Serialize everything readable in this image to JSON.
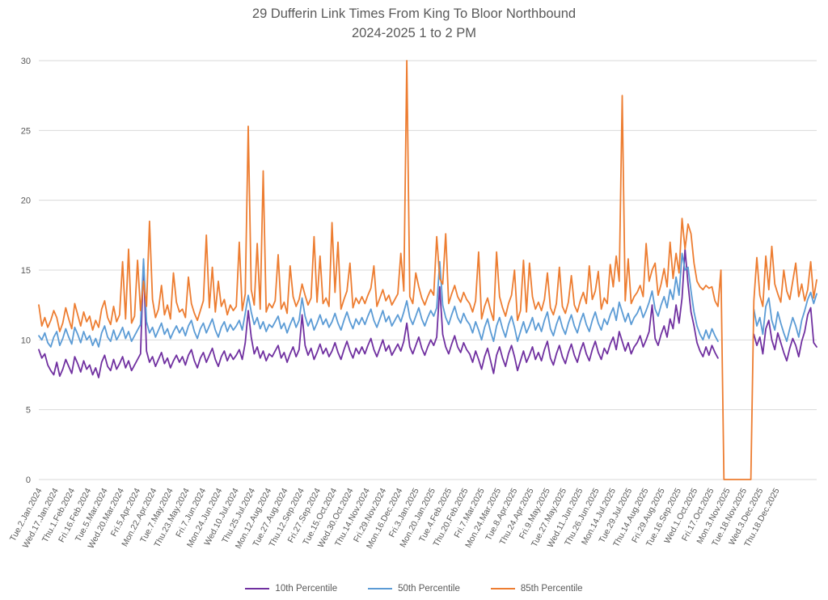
{
  "title": {
    "line1": "29 Dufferin Link Times From King To Bloor Northbound",
    "line2": "2024-2025 1 to 2 PM"
  },
  "colors": {
    "text": "#595959",
    "grid": "#d9d9d9",
    "background": "#ffffff"
  },
  "chart_data": {
    "type": "line",
    "title": "29 Dufferin Link Times From King To Bloor Northbound 2024-2025 1 to 2 PM",
    "xlabel": "",
    "ylabel": "",
    "ylim": [
      0,
      30
    ],
    "yticks": [
      0,
      5,
      10,
      15,
      20,
      25,
      30
    ],
    "grid": "horizontal",
    "legend_position": "bottom",
    "x_tick_labels": [
      "Tue.2.Jan.2024",
      "Wed.17.Jan.2024",
      "Thu.1.Feb.2024",
      "Fri.16.Feb.2024",
      "Tue.5.Mar.2024",
      "Wed.20.Mar.2024",
      "Fri.5.Apr.2024",
      "Mon.22.Apr.2024",
      "Tue.7.May.2024",
      "Thu.23.May.2024",
      "Fri.7.Jun.2024",
      "Mon.24.Jun.2024",
      "Wed.10.Jul.2024",
      "Thu.25.Jul.2024",
      "Mon.12.Aug.2024",
      "Tue.27.Aug.2024",
      "Thu.12.Sep.2024",
      "Fri.27.Sep.2024",
      "Tue.15.Oct.2024",
      "Wed.30.Oct.2024",
      "Thu.14.Nov.2024",
      "Fri.29.Nov.2024",
      "Mon.16.Dec.2024",
      "Fri.3.Jan.2025",
      "Mon.20.Jan.2025",
      "Tue.4.Feb.2025",
      "Thu.20.Feb.2025",
      "Fri.7.Mar.2025",
      "Mon.24.Mar.2025",
      "Tue.8.Apr.2025",
      "Thu.24.Apr.2025",
      "Fri.9.May.2025",
      "Tue.27.May.2025",
      "Wed.11.Jun.2025",
      "Thu.26.Jun.2025",
      "Mon.14.Jul.2025",
      "Tue.29.Jul.2025",
      "Thu.14.Aug.2025",
      "Fri.29.Aug.2025",
      "Tue.16.Sep.2025",
      "Wed.1.Oct.2025",
      "Fri.17.Oct.2025",
      "Mon.3.Nov.2025",
      "Tue.18.Nov.2025",
      "Wed.3.Dec.2025",
      "Thu.18.Dec.2025"
    ],
    "series": [
      {
        "name": "10th Percentile",
        "color": "#7030a0",
        "values": [
          9.3,
          8.7,
          9.0,
          8.2,
          7.8,
          7.5,
          8.4,
          7.4,
          7.9,
          8.6,
          8.1,
          7.6,
          8.8,
          8.3,
          7.7,
          8.5,
          7.9,
          8.2,
          7.5,
          8.0,
          7.3,
          8.4,
          8.9,
          8.1,
          7.8,
          8.6,
          7.9,
          8.3,
          8.8,
          8.0,
          8.5,
          7.8,
          8.2,
          8.6,
          9.0,
          15.5,
          9.2,
          8.4,
          8.8,
          8.1,
          8.6,
          9.1,
          8.3,
          8.7,
          8.0,
          8.5,
          8.9,
          8.4,
          8.8,
          8.2,
          8.9,
          9.3,
          8.5,
          8.0,
          8.7,
          9.1,
          8.4,
          8.9,
          9.4,
          8.6,
          8.1,
          8.8,
          9.2,
          8.5,
          9.0,
          8.6,
          8.9,
          9.3,
          8.6,
          9.8,
          12.1,
          10.2,
          9.0,
          9.5,
          8.7,
          9.2,
          8.5,
          9.0,
          8.8,
          9.2,
          9.6,
          8.7,
          9.1,
          8.4,
          9.0,
          9.5,
          8.8,
          9.3,
          11.8,
          9.6,
          8.9,
          9.4,
          8.6,
          9.1,
          9.7,
          9.0,
          9.4,
          8.8,
          9.2,
          9.8,
          9.1,
          8.6,
          9.3,
          9.9,
          9.2,
          8.7,
          9.4,
          9.0,
          9.5,
          9.0,
          9.6,
          10.1,
          9.3,
          8.8,
          9.4,
          10.0,
          9.2,
          9.6,
          8.9,
          9.3,
          9.7,
          9.2,
          9.9,
          11.2,
          9.5,
          9.0,
          9.6,
          10.2,
          9.4,
          8.9,
          9.5,
          10.0,
          9.6,
          10.2,
          13.8,
          10.4,
          9.5,
          9.0,
          9.7,
          10.3,
          9.5,
          9.1,
          9.8,
          9.3,
          9.0,
          8.4,
          9.2,
          8.6,
          7.9,
          8.8,
          9.4,
          8.5,
          7.6,
          8.9,
          9.5,
          8.7,
          8.1,
          9.0,
          9.6,
          8.8,
          7.8,
          8.5,
          9.2,
          8.4,
          8.9,
          9.5,
          8.6,
          9.1,
          8.5,
          9.3,
          9.9,
          8.7,
          8.2,
          9.0,
          9.6,
          8.8,
          8.3,
          9.1,
          9.7,
          8.9,
          8.4,
          9.2,
          9.8,
          9.0,
          8.5,
          9.3,
          9.9,
          9.1,
          8.6,
          9.4,
          9.0,
          9.7,
          10.2,
          9.3,
          10.6,
          9.9,
          9.2,
          9.8,
          9.0,
          9.5,
          9.8,
          10.3,
          9.5,
          10.0,
          10.6,
          12.5,
          10.1,
          9.6,
          10.4,
          11.0,
          10.2,
          11.5,
          10.8,
          12.5,
          11.2,
          13.0,
          16.5,
          14.0,
          12.0,
          11.0,
          9.8,
          9.2,
          8.8,
          9.5,
          8.9,
          9.6,
          9.1,
          8.7,
          null,
          null,
          null,
          null,
          null,
          null,
          null,
          null,
          null,
          null,
          null,
          10.4,
          9.6,
          10.2,
          9.0,
          10.8,
          11.4,
          10.0,
          9.3,
          10.5,
          9.8,
          9.1,
          8.5,
          9.4,
          10.1,
          9.6,
          8.8,
          9.9,
          10.6,
          11.8,
          12.3,
          9.8,
          9.5
        ]
      },
      {
        "name": "50th Percentile",
        "color": "#5b9bd5",
        "values": [
          10.3,
          10.0,
          10.5,
          9.8,
          9.5,
          10.2,
          10.6,
          9.6,
          10.1,
          10.8,
          10.2,
          9.7,
          10.9,
          10.4,
          9.8,
          10.6,
          10.0,
          10.3,
          9.6,
          10.1,
          9.5,
          10.5,
          11.0,
          10.2,
          9.9,
          10.7,
          10.0,
          10.4,
          10.9,
          10.1,
          10.6,
          9.9,
          10.3,
          10.7,
          11.1,
          15.8,
          11.3,
          10.5,
          10.9,
          10.2,
          10.7,
          11.2,
          10.4,
          10.8,
          10.1,
          10.6,
          11.0,
          10.5,
          10.9,
          10.3,
          11.0,
          11.4,
          10.6,
          10.1,
          10.8,
          11.2,
          10.5,
          11.0,
          11.5,
          10.7,
          10.2,
          10.9,
          11.3,
          10.6,
          11.1,
          10.7,
          11.0,
          11.4,
          10.7,
          11.9,
          13.2,
          12.0,
          11.1,
          11.6,
          10.8,
          11.3,
          10.6,
          11.1,
          10.9,
          11.3,
          11.7,
          10.8,
          11.2,
          10.5,
          11.1,
          11.6,
          10.9,
          11.4,
          13.0,
          11.7,
          11.0,
          11.5,
          10.7,
          11.2,
          11.8,
          11.1,
          11.5,
          10.9,
          11.3,
          11.9,
          11.2,
          10.7,
          11.4,
          12.0,
          11.3,
          10.8,
          11.5,
          11.1,
          11.6,
          11.1,
          11.7,
          12.2,
          11.4,
          10.9,
          11.5,
          12.1,
          11.3,
          11.7,
          11.0,
          11.4,
          11.8,
          11.3,
          12.0,
          12.8,
          11.6,
          11.1,
          11.7,
          12.3,
          11.5,
          11.0,
          11.6,
          12.1,
          11.7,
          12.3,
          15.6,
          12.5,
          11.6,
          11.1,
          11.8,
          12.4,
          11.6,
          11.2,
          11.9,
          11.4,
          11.1,
          10.5,
          11.3,
          10.7,
          10.0,
          10.9,
          11.5,
          10.6,
          9.9,
          11.0,
          11.6,
          10.8,
          10.2,
          11.1,
          11.7,
          10.9,
          9.9,
          10.6,
          11.3,
          10.5,
          11.0,
          11.6,
          10.7,
          11.2,
          10.6,
          11.4,
          12.0,
          10.8,
          10.3,
          11.1,
          11.7,
          10.9,
          10.4,
          11.2,
          11.8,
          11.0,
          10.5,
          11.3,
          11.9,
          11.1,
          10.6,
          11.4,
          12.0,
          11.2,
          10.7,
          11.5,
          11.1,
          11.8,
          12.3,
          11.4,
          12.7,
          12.0,
          11.3,
          11.9,
          11.1,
          11.6,
          11.9,
          12.4,
          11.6,
          12.1,
          12.7,
          13.5,
          12.2,
          11.7,
          12.5,
          13.1,
          12.3,
          13.6,
          12.9,
          14.5,
          13.2,
          16.2,
          15.0,
          15.2,
          13.5,
          12.0,
          11.0,
          10.4,
          10.0,
          10.7,
          10.1,
          10.8,
          10.3,
          9.9,
          null,
          null,
          null,
          null,
          null,
          null,
          null,
          null,
          null,
          null,
          null,
          12.2,
          11.0,
          11.6,
          10.4,
          12.4,
          13.0,
          11.4,
          10.7,
          12.0,
          11.2,
          10.5,
          9.9,
          10.8,
          11.6,
          11.0,
          10.2,
          11.4,
          12.1,
          12.9,
          13.4,
          12.6,
          13.3
        ]
      },
      {
        "name": "85th Percentile",
        "color": "#ed7d31",
        "values": [
          12.5,
          11.0,
          11.6,
          10.9,
          11.4,
          12.1,
          11.6,
          10.6,
          11.2,
          12.3,
          11.5,
          10.8,
          12.6,
          11.8,
          11.0,
          12.0,
          11.3,
          11.7,
          10.7,
          11.4,
          10.9,
          12.2,
          12.8,
          11.6,
          11.1,
          12.4,
          11.3,
          11.8,
          15.6,
          11.5,
          16.5,
          11.2,
          11.7,
          15.7,
          12.1,
          14.2,
          12.4,
          18.5,
          12.9,
          11.6,
          12.2,
          13.9,
          11.8,
          12.5,
          11.5,
          14.8,
          12.7,
          12.0,
          12.2,
          11.6,
          14.5,
          12.6,
          11.9,
          11.4,
          12.1,
          12.8,
          17.5,
          12.3,
          15.2,
          12.0,
          14.2,
          12.4,
          12.9,
          11.8,
          12.5,
          12.1,
          12.4,
          17.0,
          12.1,
          13.3,
          25.3,
          13.6,
          12.5,
          16.9,
          12.2,
          22.1,
          12.0,
          12.6,
          12.3,
          12.8,
          16.1,
          12.2,
          12.7,
          11.9,
          15.3,
          13.1,
          12.4,
          12.9,
          14.0,
          13.2,
          12.5,
          13.0,
          17.4,
          12.7,
          16.0,
          12.6,
          13.0,
          12.4,
          18.4,
          13.4,
          17.0,
          12.2,
          12.9,
          13.5,
          15.5,
          12.3,
          13.0,
          12.6,
          13.1,
          12.6,
          13.2,
          13.7,
          15.3,
          12.4,
          13.0,
          13.6,
          12.8,
          13.2,
          12.5,
          12.9,
          13.3,
          16.2,
          13.5,
          30.0,
          13.1,
          12.6,
          14.8,
          13.8,
          13.0,
          12.5,
          13.1,
          13.6,
          13.2,
          17.4,
          14.4,
          14.0,
          17.6,
          12.6,
          13.3,
          13.9,
          13.1,
          12.7,
          13.4,
          12.9,
          12.6,
          12.0,
          12.8,
          16.3,
          11.5,
          12.4,
          13.0,
          12.1,
          11.4,
          16.3,
          13.1,
          12.3,
          11.7,
          12.6,
          13.2,
          15.0,
          11.4,
          12.1,
          15.7,
          12.0,
          15.5,
          13.1,
          12.2,
          12.7,
          12.1,
          12.9,
          14.8,
          12.3,
          11.8,
          12.6,
          15.2,
          12.4,
          11.9,
          12.7,
          14.6,
          12.5,
          12.0,
          12.8,
          13.4,
          12.6,
          15.3,
          12.9,
          13.5,
          14.9,
          12.2,
          13.0,
          12.6,
          15.4,
          13.8,
          16.0,
          14.2,
          27.5,
          12.8,
          15.8,
          12.6,
          13.1,
          13.4,
          13.9,
          13.1,
          16.9,
          14.2,
          15.0,
          15.5,
          13.2,
          14.0,
          15.1,
          13.8,
          17.0,
          14.4,
          16.2,
          14.8,
          18.7,
          16.5,
          18.3,
          17.6,
          15.5,
          14.2,
          13.8,
          13.6,
          13.9,
          13.7,
          13.8,
          12.8,
          12.4,
          15.0,
          0,
          0,
          0,
          0,
          0,
          0,
          0,
          0,
          0,
          0,
          12.8,
          15.9,
          13.2,
          12.4,
          16.0,
          13.6,
          16.7,
          14.0,
          13.3,
          12.7,
          15.0,
          13.5,
          12.9,
          14.2,
          15.5,
          13.1,
          14.0,
          12.8,
          13.6,
          15.6,
          13.0,
          14.3
        ]
      }
    ]
  }
}
